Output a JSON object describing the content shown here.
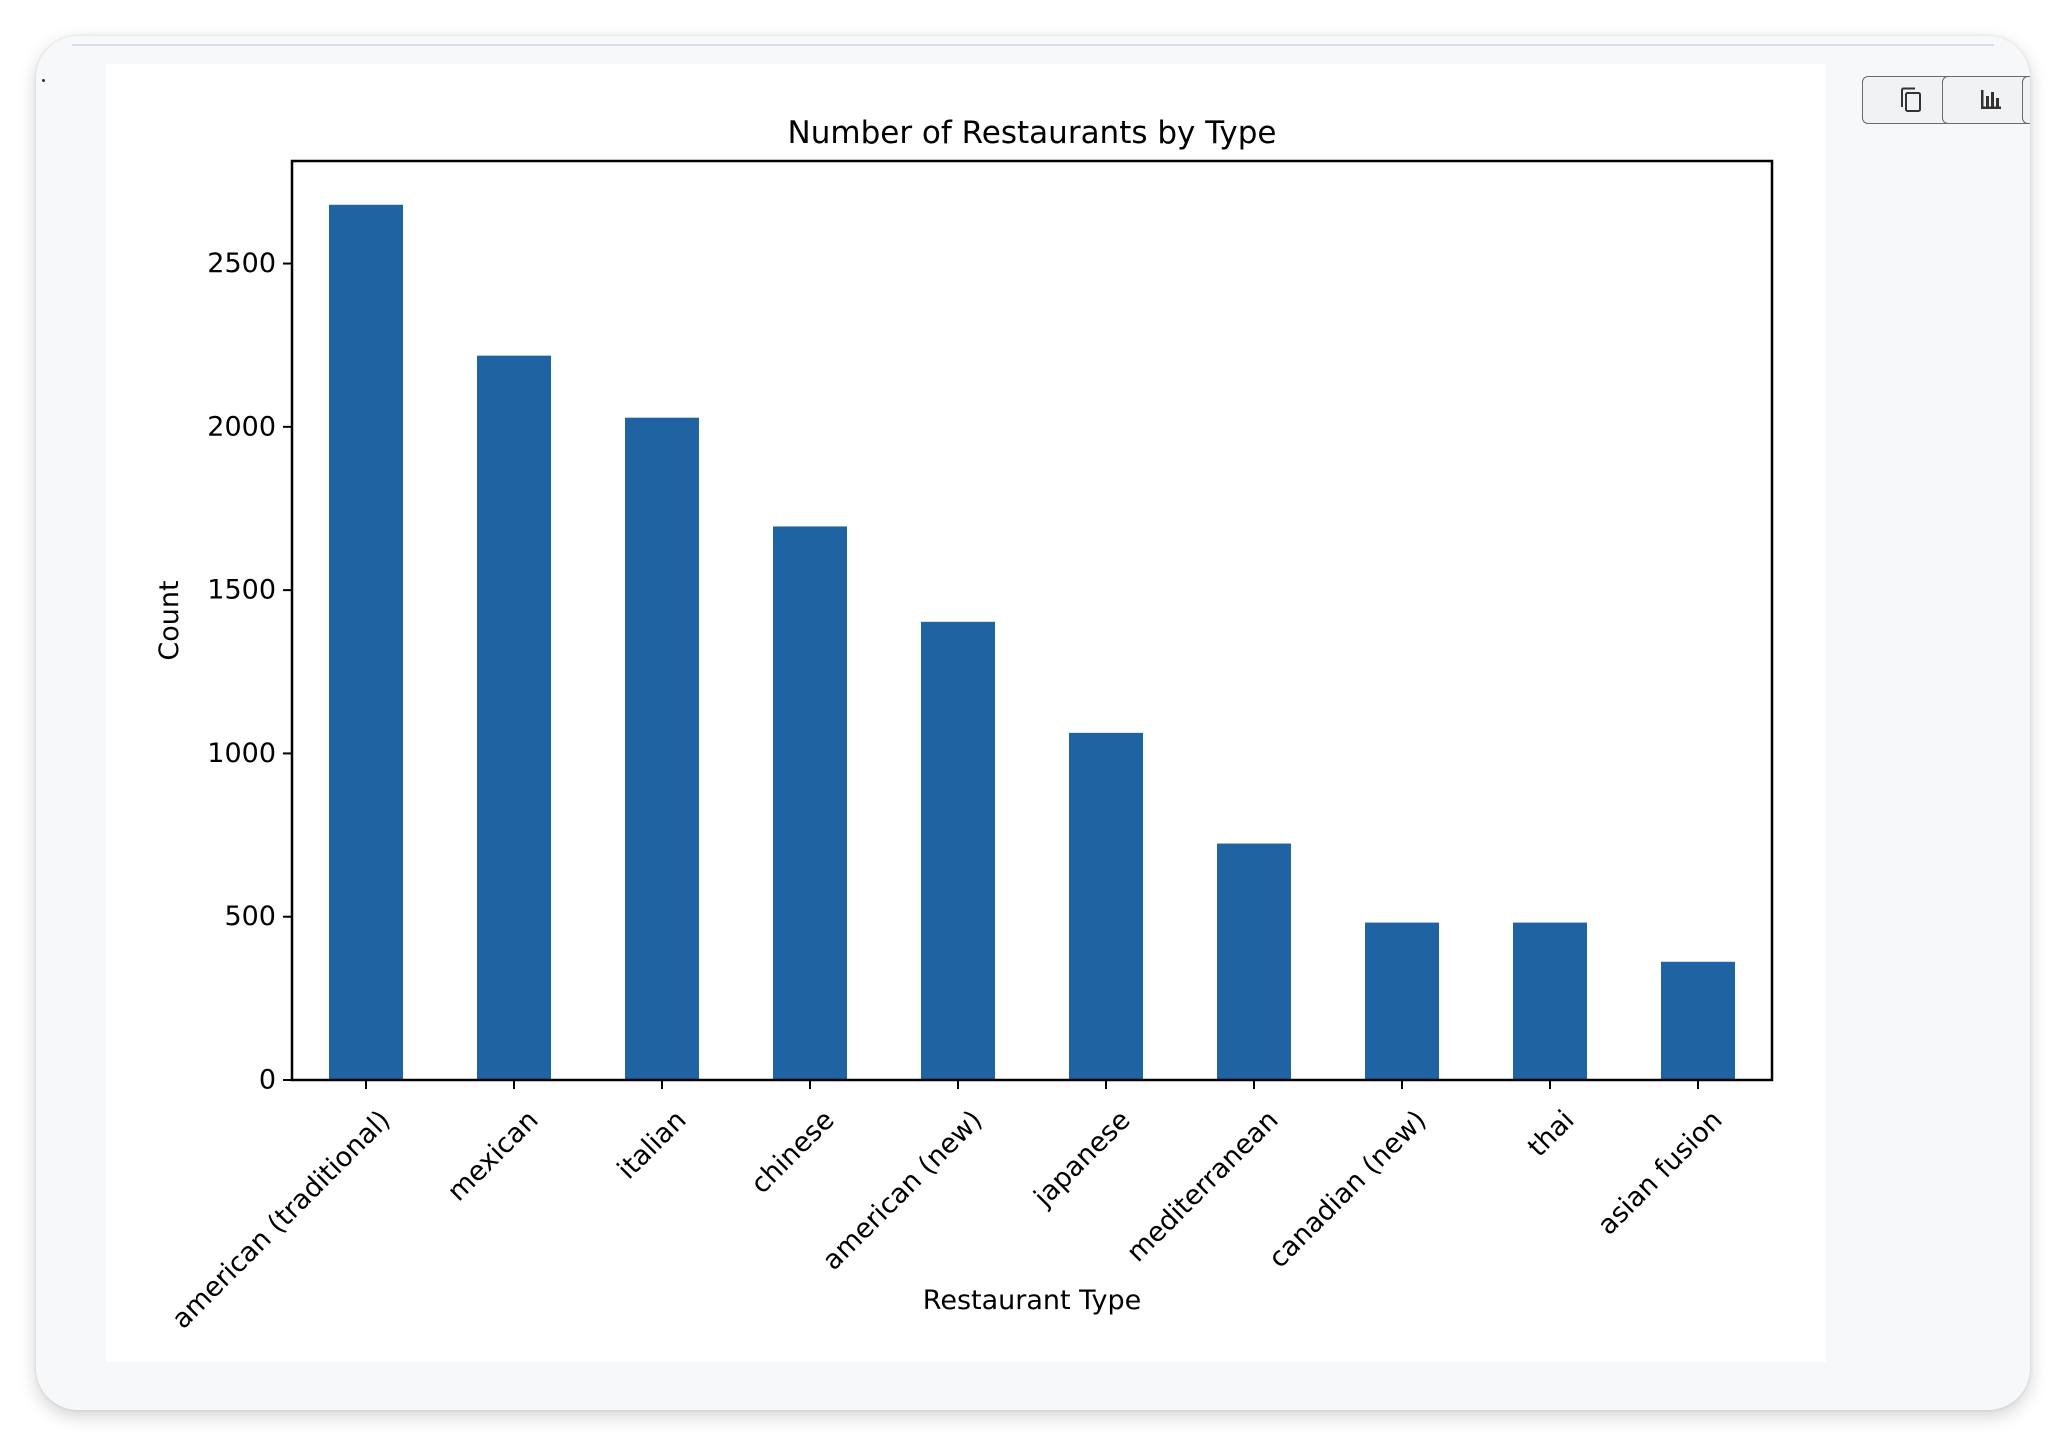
{
  "toolbar": {
    "buttons": [
      {
        "icon": "copy-icon"
      },
      {
        "icon": "bar-chart-icon"
      },
      {
        "icon": "more-icon"
      }
    ]
  },
  "chart_data": {
    "type": "bar",
    "title": "Number of Restaurants by Type",
    "xlabel": "Restaurant Type",
    "ylabel": "Count",
    "categories": [
      "american (traditional)",
      "mexican",
      "italian",
      "chinese",
      "american (new)",
      "japanese",
      "mediterranean",
      "canadian (new)",
      "thai",
      "asian fusion"
    ],
    "values": [
      2680,
      2218,
      2028,
      1695,
      1403,
      1063,
      724,
      482,
      482,
      362
    ],
    "ylim": [
      0,
      2814
    ],
    "yticks": [
      0,
      500,
      1000,
      1500,
      2000,
      2500
    ],
    "bar_color": "#1f63a3",
    "grid": false,
    "legend": "none"
  }
}
